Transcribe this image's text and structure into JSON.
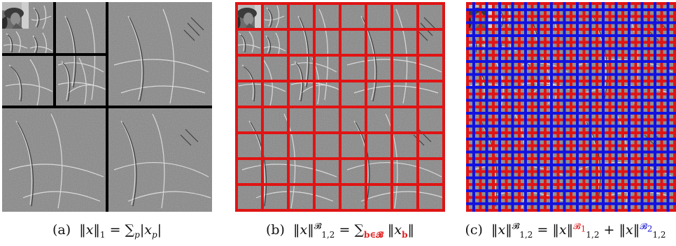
{
  "figure": {
    "captions": {
      "a": {
        "label": "(a)",
        "formula": "‖x‖₁ = ∑ₚ|xₚ|"
      },
      "b": {
        "label": "(b)",
        "formula": "‖x‖^𝓑₁,₂ = ∑_{𝐛∈𝓑} ‖x_𝐛‖"
      },
      "c": {
        "label": "(c)",
        "formula": "‖x‖^𝓑₁,₂ = ‖x‖^{𝓑₁}₁,₂ + ‖x‖^{𝓑₂}₁,₂"
      }
    },
    "panels": [
      {
        "id": "a",
        "content": "wavelet decomposition of image, 3 levels",
        "grid": "none"
      },
      {
        "id": "b",
        "content": "same decomposition with block partition",
        "grid": "red 8x8"
      },
      {
        "id": "c",
        "content": "same decomposition with two overlapping block partitions",
        "grid": "red and blue"
      }
    ],
    "colors": {
      "grid_red": "#e01414",
      "grid_blue": "#1212e0",
      "separator": "#000000",
      "background_gray": "#808080"
    }
  }
}
